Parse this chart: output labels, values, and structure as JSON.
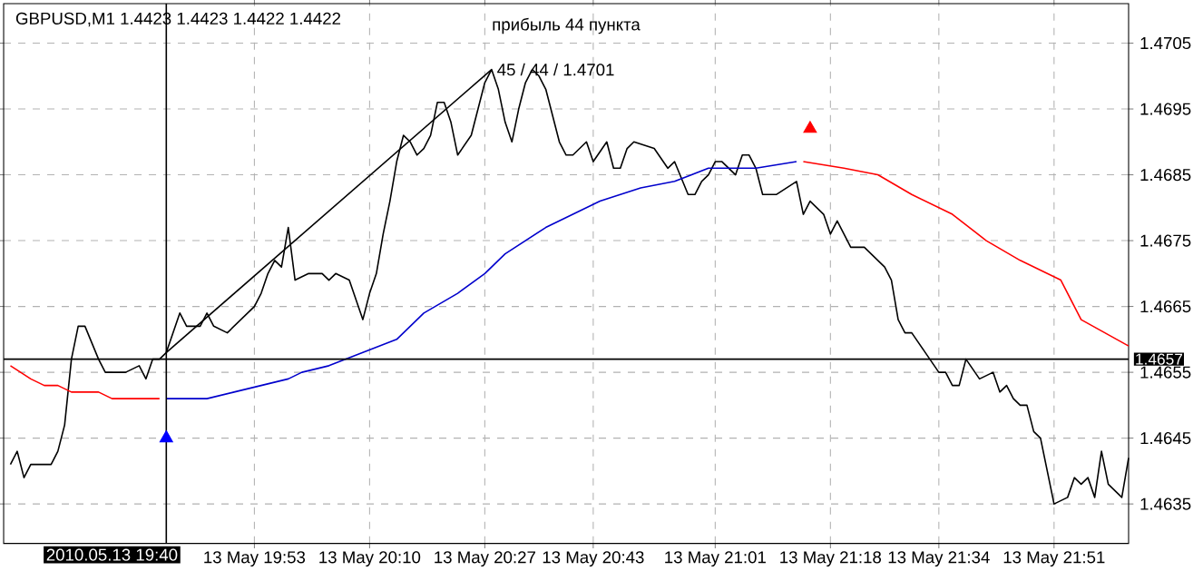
{
  "chart_data": {
    "type": "line",
    "title": "GBPUSD,M1  1.4423 1.4423 1.4422 1.4422",
    "annotations": [
      "прибыль 44 пункта",
      {
        "text": "45 / 44 / 1.4701",
        "x": "2010-05-13T20:28",
        "y": 1.4701
      }
    ],
    "xlim": [
      "2010-05-13T19:16",
      "2010-05-13T22:02"
    ],
    "ylim": [
      1.4629,
      1.4711
    ],
    "xticks": [
      {
        "value": "2010-05-13T19:53",
        "label": "13 May 19:53"
      },
      {
        "value": "2010-05-13T20:10",
        "label": "13 May 20:10"
      },
      {
        "value": "2010-05-13T20:27",
        "label": "13 May 20:27"
      },
      {
        "value": "2010-05-13T20:43",
        "label": "13 May 20:43"
      },
      {
        "value": "2010-05-13T21:01",
        "label": "13 May 21:01"
      },
      {
        "value": "2010-05-13T21:18",
        "label": "13 May 21:18"
      },
      {
        "value": "2010-05-13T21:34",
        "label": "13 May 21:34"
      },
      {
        "value": "2010-05-13T21:51",
        "label": "13 May 21:51"
      }
    ],
    "yticks": [
      1.4635,
      1.4645,
      1.4655,
      1.4665,
      1.4675,
      1.4685,
      1.4695,
      1.4705
    ],
    "grid": true,
    "ref_lines": [
      {
        "axis": "y",
        "value": 1.4657,
        "label": "1.4657"
      },
      {
        "axis": "x",
        "value": "2010-05-13T19:40",
        "label": "2010.05.13 19:40"
      }
    ],
    "series": [
      {
        "color": "#000000",
        "x": [
          "2010-05-13T19:17",
          "2010-05-13T19:18",
          "2010-05-13T19:19",
          "2010-05-13T19:20",
          "2010-05-13T19:23",
          "2010-05-13T19:24",
          "2010-05-13T19:25",
          "2010-05-13T19:26",
          "2010-05-13T19:27",
          "2010-05-13T19:28",
          "2010-05-13T19:30",
          "2010-05-13T19:31",
          "2010-05-13T19:32",
          "2010-05-13T19:34",
          "2010-05-13T19:36",
          "2010-05-13T19:37",
          "2010-05-13T19:38",
          "2010-05-13T19:39",
          "2010-05-13T19:40",
          "2010-05-13T19:42",
          "2010-05-13T19:43",
          "2010-05-13T19:45",
          "2010-05-13T19:46",
          "2010-05-13T19:47",
          "2010-05-13T19:49",
          "2010-05-13T19:51",
          "2010-05-13T19:53",
          "2010-05-13T19:54",
          "2010-05-13T19:55",
          "2010-05-13T19:56",
          "2010-05-13T19:57",
          "2010-05-13T19:58",
          "2010-05-13T19:59",
          "2010-05-13T20:01",
          "2010-05-13T20:03",
          "2010-05-13T20:04",
          "2010-05-13T20:05",
          "2010-05-13T20:07",
          "2010-05-13T20:09",
          "2010-05-13T20:10",
          "2010-05-13T20:11",
          "2010-05-13T20:12",
          "2010-05-13T20:13",
          "2010-05-13T20:14",
          "2010-05-13T20:15",
          "2010-05-13T20:16",
          "2010-05-13T20:17",
          "2010-05-13T20:18",
          "2010-05-13T20:19",
          "2010-05-13T20:20",
          "2010-05-13T20:21",
          "2010-05-13T20:22",
          "2010-05-13T20:23",
          "2010-05-13T20:25",
          "2010-05-13T20:26",
          "2010-05-13T20:27",
          "2010-05-13T20:28",
          "2010-05-13T20:29",
          "2010-05-13T20:30",
          "2010-05-13T20:31",
          "2010-05-13T20:32",
          "2010-05-13T20:33",
          "2010-05-13T20:34",
          "2010-05-13T20:35",
          "2010-05-13T20:36",
          "2010-05-13T20:38",
          "2010-05-13T20:39",
          "2010-05-13T20:40",
          "2010-05-13T20:42",
          "2010-05-13T20:43",
          "2010-05-13T20:45",
          "2010-05-13T20:46",
          "2010-05-13T20:47",
          "2010-05-13T20:48",
          "2010-05-13T20:49",
          "2010-05-13T20:52",
          "2010-05-13T20:54",
          "2010-05-13T20:55",
          "2010-05-13T20:57",
          "2010-05-13T20:58",
          "2010-05-13T20:59",
          "2010-05-13T21:00",
          "2010-05-13T21:01",
          "2010-05-13T21:02",
          "2010-05-13T21:04",
          "2010-05-13T21:05",
          "2010-05-13T21:06",
          "2010-05-13T21:07",
          "2010-05-13T21:08",
          "2010-05-13T21:10",
          "2010-05-13T21:13",
          "2010-05-13T21:14",
          "2010-05-13T21:15",
          "2010-05-13T21:17",
          "2010-05-13T21:18",
          "2010-05-13T21:19",
          "2010-05-13T21:21",
          "2010-05-13T21:23",
          "2010-05-13T21:26",
          "2010-05-13T21:27",
          "2010-05-13T21:28",
          "2010-05-13T21:29",
          "2010-05-13T21:30",
          "2010-05-13T21:32",
          "2010-05-13T21:34",
          "2010-05-13T21:35",
          "2010-05-13T21:36",
          "2010-05-13T21:37",
          "2010-05-13T21:38",
          "2010-05-13T21:40",
          "2010-05-13T21:42",
          "2010-05-13T21:43",
          "2010-05-13T21:44",
          "2010-05-13T21:45",
          "2010-05-13T21:46",
          "2010-05-13T21:47",
          "2010-05-13T21:48",
          "2010-05-13T21:49",
          "2010-05-13T21:51",
          "2010-05-13T21:53",
          "2010-05-13T21:54",
          "2010-05-13T21:55",
          "2010-05-13T21:56",
          "2010-05-13T21:57",
          "2010-05-13T21:58",
          "2010-05-13T21:59",
          "2010-05-13T22:01",
          "2010-05-13T22:02"
        ],
        "values": [
          1.4641,
          1.4643,
          1.4639,
          1.4641,
          1.4641,
          1.4643,
          1.4647,
          1.4657,
          1.4662,
          1.4662,
          1.4657,
          1.4655,
          1.4655,
          1.4655,
          1.4656,
          1.4654,
          1.4657,
          1.4657,
          1.4658,
          1.4664,
          1.4662,
          1.4662,
          1.4664,
          1.4662,
          1.4661,
          1.4663,
          1.4665,
          1.4667,
          1.467,
          1.4672,
          1.4671,
          1.4677,
          1.4669,
          1.467,
          1.467,
          1.4669,
          1.467,
          1.4669,
          1.4663,
          1.4667,
          1.467,
          1.4676,
          1.4681,
          1.4687,
          1.4691,
          1.469,
          1.4688,
          1.4689,
          1.4691,
          1.4696,
          1.4696,
          1.4693,
          1.4688,
          1.4691,
          1.4695,
          1.4699,
          1.4701,
          1.4698,
          1.4693,
          1.469,
          1.4695,
          1.4699,
          1.4701,
          1.47,
          1.4698,
          1.469,
          1.4688,
          1.4688,
          1.469,
          1.4687,
          1.469,
          1.4686,
          1.4686,
          1.4689,
          1.469,
          1.4689,
          1.4686,
          1.4687,
          1.4682,
          1.4682,
          1.4684,
          1.4685,
          1.4687,
          1.4687,
          1.4685,
          1.4688,
          1.4688,
          1.4686,
          1.4682,
          1.4682,
          1.4684,
          1.4679,
          1.4681,
          1.4679,
          1.4676,
          1.4678,
          1.4674,
          1.4674,
          1.4671,
          1.4669,
          1.4663,
          1.4661,
          1.4661,
          1.4658,
          1.4655,
          1.4655,
          1.4653,
          1.4653,
          1.4657,
          1.4654,
          1.4655,
          1.4652,
          1.4653,
          1.4651,
          1.465,
          1.465,
          1.4646,
          1.4645,
          1.4635,
          1.4636,
          1.4639,
          1.4638,
          1.4639,
          1.4636,
          1.4643,
          1.4638,
          1.4636,
          1.4642
        ]
      },
      {
        "color": "#000000",
        "x": [
          "2010-05-13T19:40",
          "2010-05-13T20:28"
        ],
        "values": [
          1.4658,
          1.4701
        ]
      },
      {
        "color": "#ff0000",
        "x": [
          "2010-05-13T19:17",
          "2010-05-13T19:20",
          "2010-05-13T19:22",
          "2010-05-13T19:24",
          "2010-05-13T19:26",
          "2010-05-13T19:28",
          "2010-05-13T19:30",
          "2010-05-13T19:32",
          "2010-05-13T19:34",
          "2010-05-13T19:37",
          "2010-05-13T19:39"
        ],
        "values": [
          1.4656,
          1.4654,
          1.4653,
          1.4653,
          1.4652,
          1.4652,
          1.4652,
          1.4651,
          1.4651,
          1.4651,
          1.4651
        ]
      },
      {
        "color": "#0000cc",
        "x": [
          "2010-05-13T19:40",
          "2010-05-13T19:42",
          "2010-05-13T19:46",
          "2010-05-13T19:50",
          "2010-05-13T19:54",
          "2010-05-13T19:58",
          "2010-05-13T20:00",
          "2010-05-13T20:04",
          "2010-05-13T20:09",
          "2010-05-13T20:14",
          "2010-05-13T20:18",
          "2010-05-13T20:23",
          "2010-05-13T20:27",
          "2010-05-13T20:30",
          "2010-05-13T20:36",
          "2010-05-13T20:44",
          "2010-05-13T20:50",
          "2010-05-13T20:55",
          "2010-05-13T21:00",
          "2010-05-13T21:07",
          "2010-05-13T21:13"
        ],
        "values": [
          1.4651,
          1.4651,
          1.4651,
          1.4652,
          1.4653,
          1.4654,
          1.4655,
          1.4656,
          1.4658,
          1.466,
          1.4664,
          1.4667,
          1.467,
          1.4673,
          1.4677,
          1.4681,
          1.4683,
          1.4684,
          1.4686,
          1.4686,
          1.4687
        ]
      },
      {
        "color": "#ff0000",
        "x": [
          "2010-05-13T21:14",
          "2010-05-13T21:20",
          "2010-05-13T21:25",
          "2010-05-13T21:30",
          "2010-05-13T21:36",
          "2010-05-13T21:41",
          "2010-05-13T21:46",
          "2010-05-13T21:52",
          "2010-05-13T21:55",
          "2010-05-13T22:02"
        ],
        "values": [
          1.4687,
          1.4686,
          1.4685,
          1.4682,
          1.4679,
          1.4675,
          1.4672,
          1.4669,
          1.4663,
          1.4659
        ]
      },
      {
        "type": "scatter",
        "marker": "triangle",
        "color": "#0000ff",
        "x": [
          "2010-05-13T19:40"
        ],
        "values": [
          1.4645
        ]
      },
      {
        "type": "scatter",
        "marker": "triangle",
        "color": "#ff0000",
        "x": [
          "2010-05-13T21:15"
        ],
        "values": [
          1.4692
        ]
      }
    ]
  }
}
